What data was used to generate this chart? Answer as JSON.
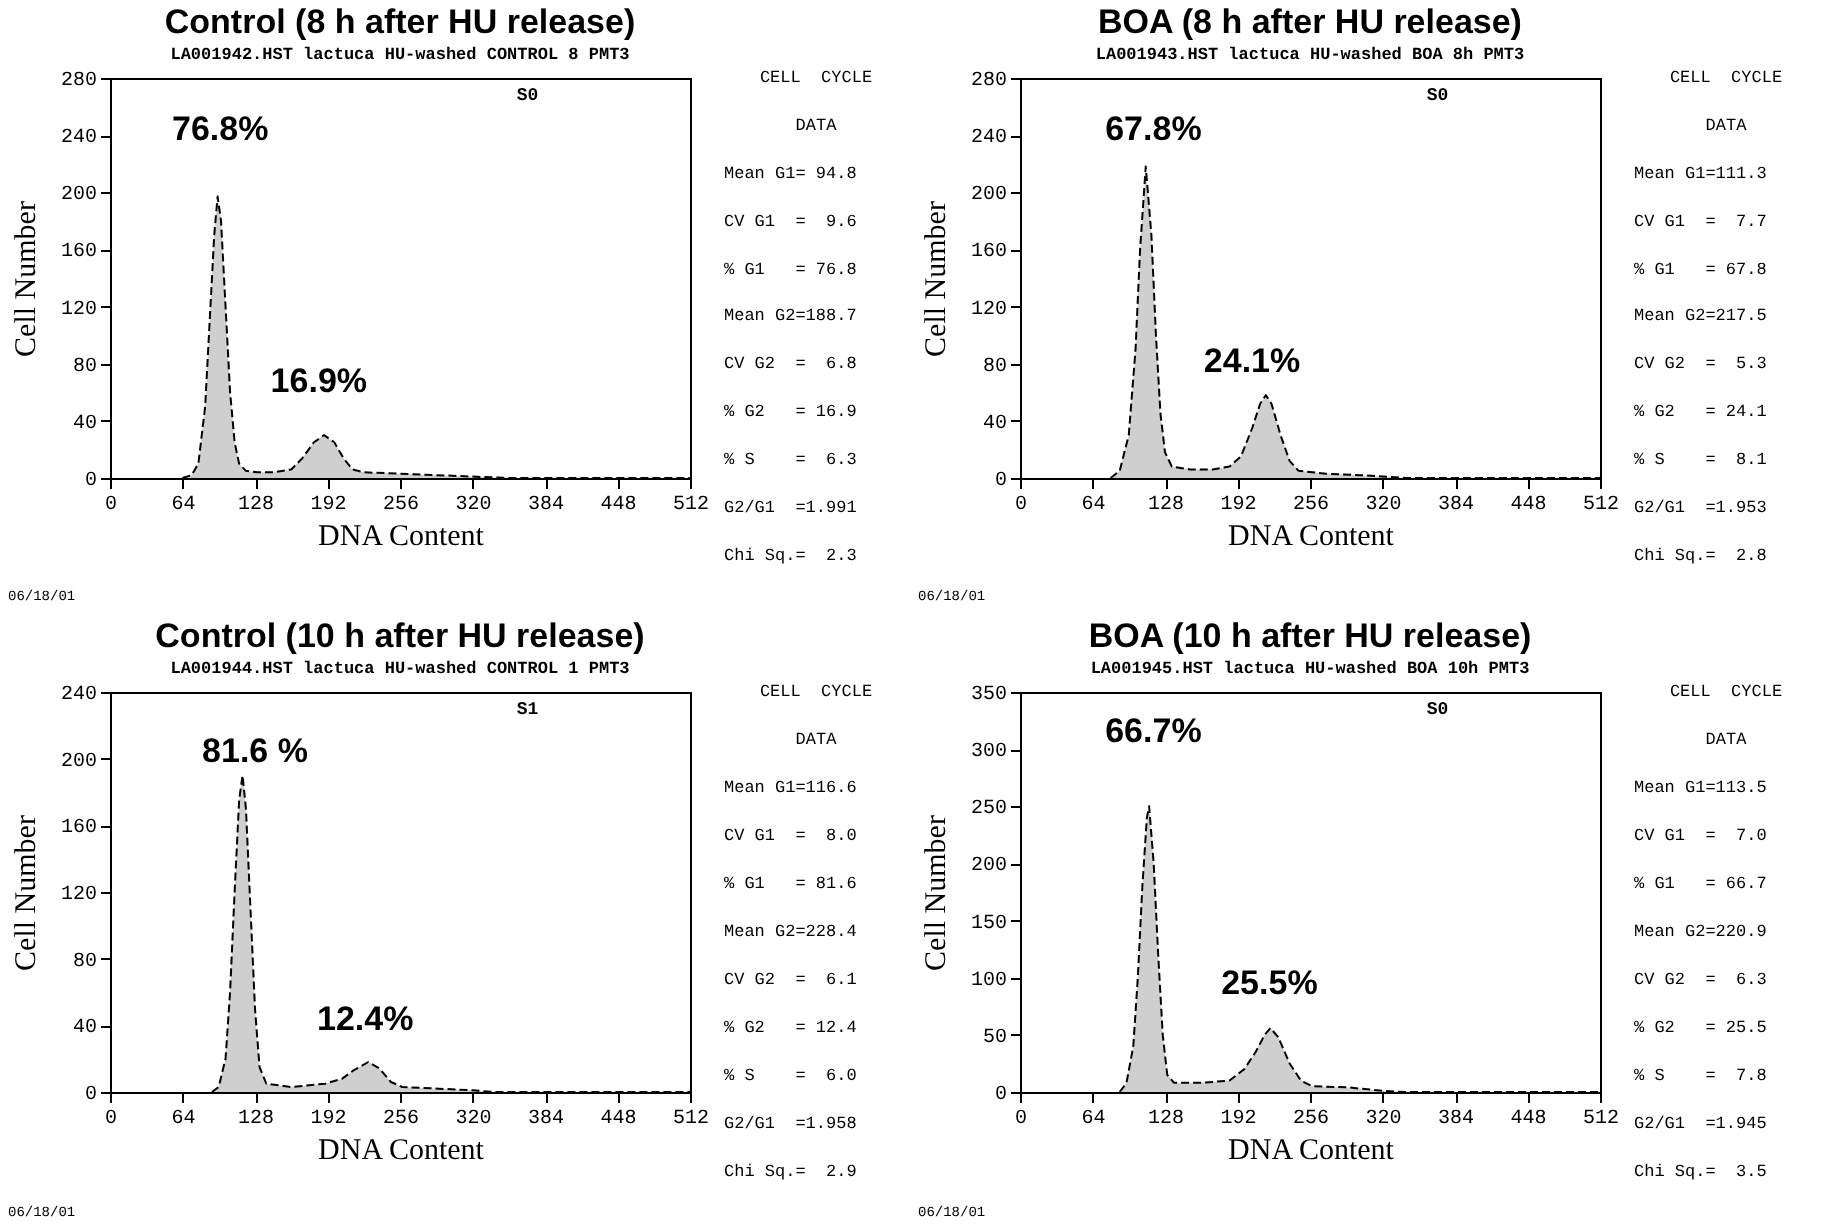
{
  "chart_data": [
    {
      "type": "area",
      "title": "Control (8 h after HU release)",
      "subtitle": "LA001942.HST lactuca HU-washed CONTROL 8    PMT3",
      "xlabel": "DNA Content",
      "ylabel": "Cell Number",
      "xlim": [
        0,
        512
      ],
      "ylim": [
        0,
        280
      ],
      "xticks": [
        0,
        64,
        128,
        192,
        256,
        320,
        384,
        448,
        512
      ],
      "yticks": [
        0,
        40,
        80,
        120,
        160,
        200,
        240,
        280
      ],
      "line_style": "dashed",
      "x": [
        64,
        72,
        78,
        84,
        88,
        92,
        95,
        98,
        102,
        106,
        110,
        114,
        120,
        130,
        145,
        160,
        170,
        180,
        189,
        198,
        206,
        214,
        224,
        256,
        288,
        320,
        352,
        512
      ],
      "series": [
        {
          "color": "#cfcfcf",
          "values": [
            0,
            2,
            10,
            50,
            110,
            170,
            197,
            180,
            120,
            60,
            25,
            10,
            5,
            4,
            4,
            6,
            14,
            25,
            30,
            25,
            14,
            6,
            4,
            3,
            2,
            1,
            0,
            0
          ]
        }
      ],
      "annotations": [
        "S0",
        "76.8%",
        "16.9%",
        "CELL  CYCLE",
        "DATA",
        "Mean G1= 94.8",
        "CV G1  =  9.6",
        "% G1   = 76.8",
        "Mean G2=188.7",
        "CV G2  =  6.8",
        "% G2   = 16.9",
        "% S    =  6.3",
        "G2/G1  =1.991",
        "Chi Sq.=  2.3",
        "06/18/01"
      ]
    },
    {
      "type": "area",
      "title": "BOA (8 h after HU release)",
      "subtitle": "LA001943.HST lactuca HU-washed BOA 8h    PMT3",
      "xlabel": "DNA Content",
      "ylabel": "Cell Number",
      "xlim": [
        0,
        512
      ],
      "ylim": [
        0,
        280
      ],
      "xticks": [
        0,
        64,
        128,
        192,
        256,
        320,
        384,
        448,
        512
      ],
      "yticks": [
        0,
        40,
        80,
        120,
        160,
        200,
        240,
        280
      ],
      "line_style": "dashed",
      "x": [
        80,
        88,
        96,
        102,
        106,
        111,
        116,
        120,
        124,
        128,
        134,
        150,
        170,
        185,
        195,
        205,
        212,
        217,
        222,
        230,
        238,
        246,
        270,
        300,
        320,
        340,
        512
      ],
      "series": [
        {
          "color": "#cfcfcf",
          "values": [
            0,
            5,
            30,
            90,
            160,
            218,
            170,
            100,
            45,
            18,
            8,
            6,
            6,
            8,
            15,
            35,
            52,
            58,
            52,
            30,
            12,
            5,
            3,
            2,
            1,
            0,
            0
          ]
        }
      ],
      "annotations": [
        "S0",
        "67.8%",
        "24.1%",
        "CELL  CYCLE",
        "DATA",
        "Mean G1=111.3",
        "CV G1  =  7.7",
        "% G1   = 67.8",
        "Mean G2=217.5",
        "CV G2  =  5.3",
        "% G2   = 24.1",
        "% S    =  8.1",
        "G2/G1  =1.953",
        "Chi Sq.=  2.8",
        "06/18/01"
      ]
    },
    {
      "type": "area",
      "title": "Control (10 h after HU release)",
      "subtitle": "LA001944.HST lactuca HU-washed CONTROL 1    PMT3",
      "xlabel": "DNA Content",
      "ylabel": "Cell Number",
      "xlim": [
        0,
        512
      ],
      "ylim": [
        0,
        240
      ],
      "xticks": [
        0,
        64,
        128,
        192,
        256,
        320,
        384,
        448,
        512
      ],
      "yticks": [
        0,
        40,
        80,
        120,
        160,
        200,
        240
      ],
      "line_style": "dashed",
      "x": [
        90,
        96,
        102,
        106,
        110,
        114,
        117,
        120,
        124,
        128,
        132,
        138,
        160,
        190,
        205,
        215,
        228,
        238,
        248,
        258,
        290,
        320,
        340,
        512
      ],
      "series": [
        {
          "color": "#cfcfcf",
          "values": [
            0,
            3,
            20,
            60,
            120,
            175,
            190,
            170,
            110,
            50,
            15,
            5,
            3,
            5,
            8,
            13,
            18,
            14,
            6,
            3,
            2,
            1,
            0,
            0
          ]
        }
      ],
      "annotations": [
        "S1",
        "81.6 %",
        "12.4%",
        "CELL  CYCLE",
        "DATA",
        "Mean G1=116.6",
        "CV G1  =  8.0",
        "% G1   = 81.6",
        "Mean G2=228.4",
        "CV G2  =  6.1",
        "% G2   = 12.4",
        "% S    =  6.0",
        "G2/G1  =1.958",
        "Chi Sq.=  2.9",
        "06/18/01"
      ]
    },
    {
      "type": "area",
      "title": "BOA (10 h after HU release)",
      "subtitle": "LA001945.HST lactuca HU-washed BOA 10h    PMT3",
      "xlabel": "DNA Content",
      "ylabel": "Cell Number",
      "xlim": [
        0,
        512
      ],
      "ylim": [
        0,
        350
      ],
      "xticks": [
        0,
        64,
        128,
        192,
        256,
        320,
        384,
        448,
        512
      ],
      "yticks": [
        0,
        50,
        100,
        150,
        200,
        250,
        300,
        350
      ],
      "line_style": "dashed",
      "x": [
        88,
        94,
        100,
        104,
        108,
        112,
        114,
        118,
        122,
        126,
        130,
        136,
        160,
        185,
        198,
        208,
        216,
        221,
        228,
        238,
        248,
        258,
        290,
        320,
        340,
        512
      ],
      "series": [
        {
          "color": "#cfcfcf",
          "values": [
            0,
            8,
            40,
            100,
            180,
            240,
            250,
            200,
            120,
            50,
            15,
            8,
            8,
            10,
            20,
            35,
            50,
            56,
            48,
            25,
            10,
            5,
            4,
            1,
            0,
            0
          ]
        }
      ],
      "annotations": [
        "S0",
        "66.7%",
        "25.5%",
        "CELL  CYCLE",
        "DATA",
        "Mean G1=113.5",
        "CV G1  =  7.0",
        "% G1   = 66.7",
        "Mean G2=220.9",
        "CV G2  =  6.3",
        "% G2   = 25.5",
        "% S    =  7.8",
        "G2/G1  =1.945",
        "Chi Sq.=  3.5",
        "06/18/01"
      ]
    }
  ]
}
